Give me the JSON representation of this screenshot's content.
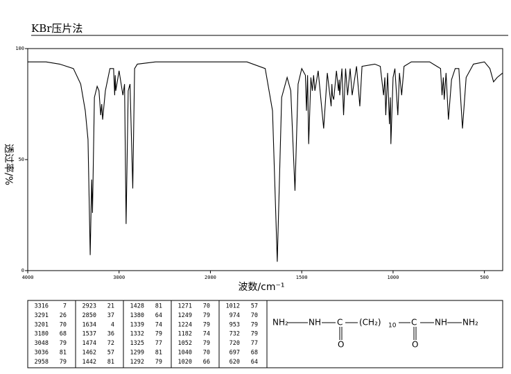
{
  "chart_data": {
    "type": "line",
    "title": "KBr压片法",
    "xlabel": "波数/cm⁻¹",
    "ylabel": "透过率/%",
    "xlim": [
      4000,
      400
    ],
    "xscale_break": 2000,
    "ylim": [
      0,
      100
    ],
    "xticks": [
      4000,
      3000,
      2000,
      1500,
      1000,
      500
    ],
    "yticks": [
      0,
      50,
      100
    ],
    "series": [
      {
        "color": "#000000",
        "x": [
          4000,
          3800,
          3650,
          3500,
          3420,
          3370,
          3340,
          3316,
          3300,
          3291,
          3270,
          3240,
          3220,
          3201,
          3190,
          3180,
          3150,
          3100,
          3060,
          3048,
          3042,
          3036,
          3000,
          2958,
          2940,
          2923,
          2900,
          2880,
          2850,
          2830,
          2800,
          2600,
          2000,
          1800,
          1700,
          1660,
          1634,
          1610,
          1580,
          1560,
          1537,
          1520,
          1500,
          1480,
          1474,
          1468,
          1462,
          1450,
          1442,
          1435,
          1428,
          1410,
          1380,
          1360,
          1339,
          1335,
          1332,
          1325,
          1310,
          1299,
          1295,
          1292,
          1280,
          1271,
          1260,
          1249,
          1235,
          1224,
          1200,
          1182,
          1170,
          1100,
          1070,
          1052,
          1045,
          1040,
          1030,
          1020,
          1015,
          1012,
          1000,
          990,
          974,
          965,
          953,
          940,
          900,
          800,
          760,
          740,
          732,
          725,
          720,
          710,
          697,
          680,
          660,
          640,
          620,
          600,
          560,
          500,
          470,
          450,
          430,
          400
        ],
        "values": [
          94,
          94,
          93,
          91,
          84,
          72,
          59,
          7,
          41,
          26,
          78,
          83,
          81,
          70,
          75,
          68,
          81,
          91,
          91,
          79,
          88,
          81,
          90,
          79,
          84,
          21,
          81,
          84,
          37,
          91,
          93,
          94,
          94,
          94,
          91,
          72,
          4,
          78,
          87,
          81,
          36,
          84,
          91,
          88,
          72,
          88,
          57,
          87,
          81,
          88,
          81,
          90,
          64,
          89,
          74,
          84,
          79,
          77,
          90,
          81,
          86,
          79,
          91,
          70,
          91,
          79,
          91,
          79,
          92,
          74,
          92,
          93,
          92,
          79,
          87,
          70,
          89,
          66,
          78,
          57,
          87,
          91,
          70,
          89,
          79,
          92,
          94,
          94,
          92,
          91,
          79,
          87,
          77,
          89,
          68,
          86,
          91,
          91,
          64,
          87,
          93,
          94,
          91,
          85,
          87,
          89
        ]
      }
    ]
  },
  "peak_table": [
    [
      [
        3316,
        7
      ],
      [
        3291,
        26
      ],
      [
        3201,
        70
      ],
      [
        3180,
        68
      ],
      [
        3048,
        79
      ],
      [
        3036,
        81
      ],
      [
        2958,
        79
      ]
    ],
    [
      [
        2923,
        21
      ],
      [
        2850,
        37
      ],
      [
        1634,
        4
      ],
      [
        1537,
        36
      ],
      [
        1474,
        72
      ],
      [
        1462,
        57
      ],
      [
        1442,
        81
      ]
    ],
    [
      [
        1428,
        81
      ],
      [
        1380,
        64
      ],
      [
        1339,
        74
      ],
      [
        1332,
        79
      ],
      [
        1325,
        77
      ],
      [
        1299,
        81
      ],
      [
        1292,
        79
      ]
    ],
    [
      [
        1271,
        70
      ],
      [
        1249,
        79
      ],
      [
        1224,
        79
      ],
      [
        1182,
        74
      ],
      [
        1052,
        79
      ],
      [
        1040,
        70
      ],
      [
        1020,
        66
      ]
    ],
    [
      [
        1012,
        57
      ],
      [
        974,
        70
      ],
      [
        953,
        79
      ],
      [
        732,
        79
      ],
      [
        720,
        77
      ],
      [
        697,
        68
      ],
      [
        620,
        64
      ]
    ]
  ],
  "structure": [
    "NH₂",
    "NH",
    "C",
    "O",
    "(CH₂)",
    "10",
    "C",
    "O",
    "NH",
    "NH₂"
  ]
}
